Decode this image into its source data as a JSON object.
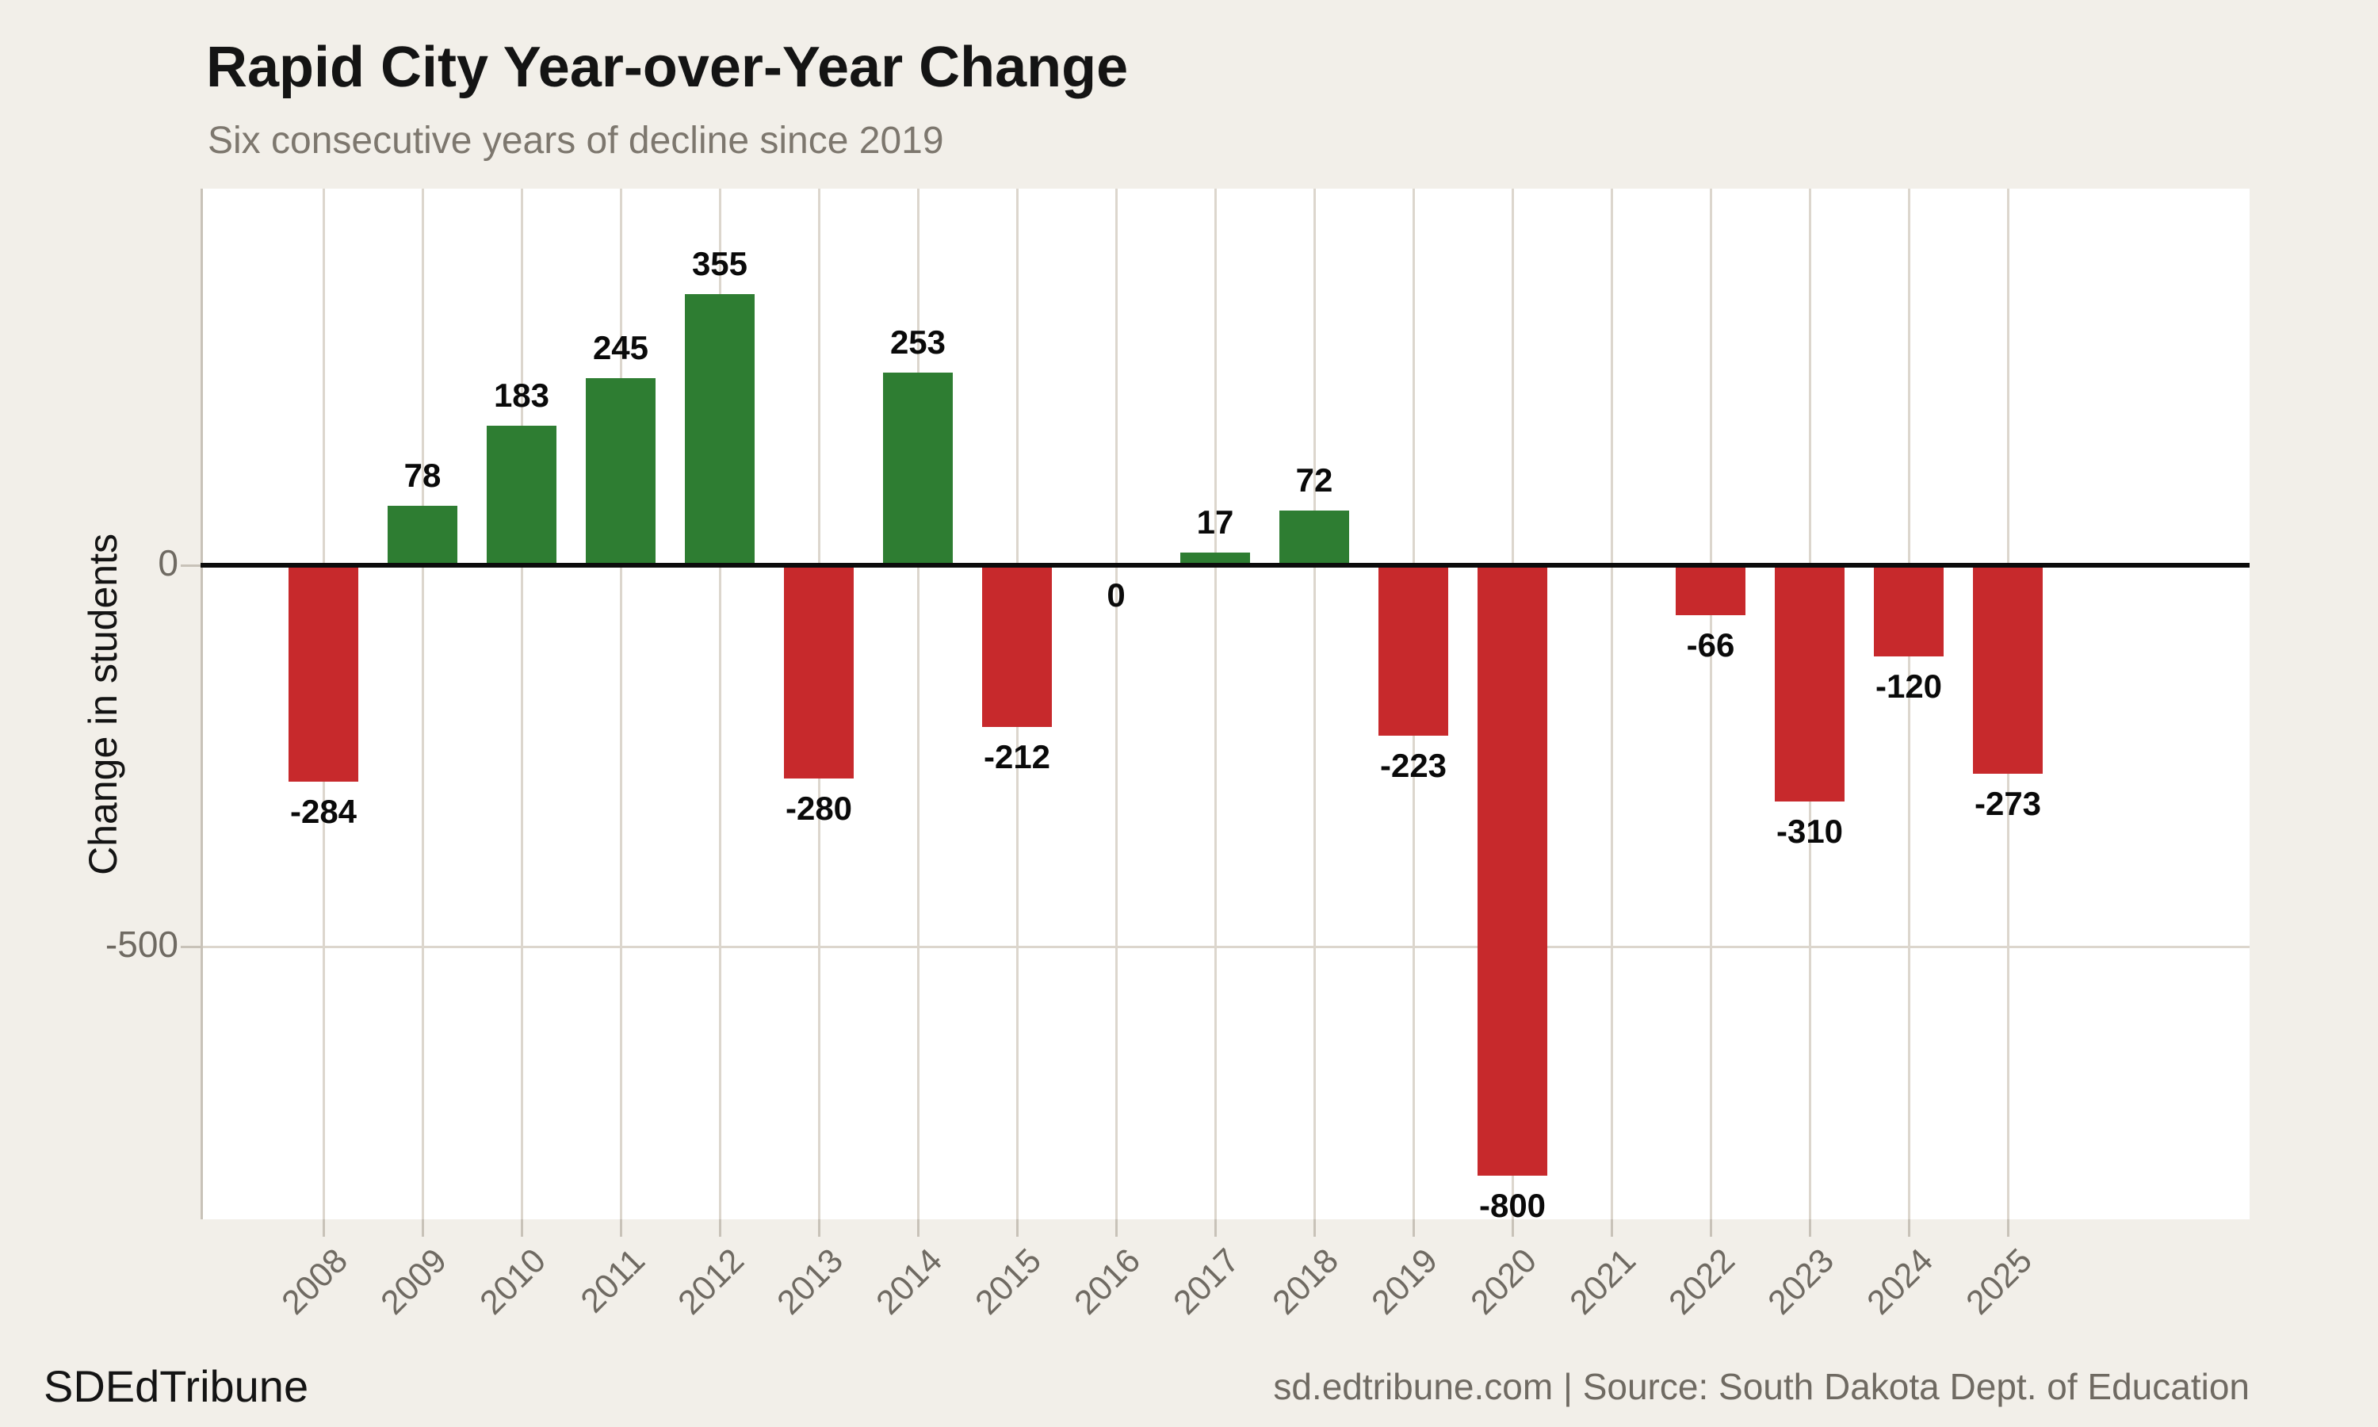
{
  "page": {
    "title": "Rapid City Year-over-Year Change",
    "subtitle": "Six consecutive years of decline since 2019",
    "footer_left": "SDEdTribune",
    "footer_right": "sd.edtribune.com | Source: South Dakota Dept. of Education"
  },
  "chart_data": {
    "type": "bar",
    "title": "Rapid City Year-over-Year Change",
    "subtitle": "Six consecutive years of decline since 2019",
    "xlabel": "",
    "ylabel": "Change in students",
    "categories": [
      "2008",
      "2009",
      "2010",
      "2011",
      "2012",
      "2013",
      "2014",
      "2015",
      "2016",
      "2017",
      "2018",
      "2019",
      "2020",
      "2021",
      "2022",
      "2023",
      "2024",
      "2025"
    ],
    "values": [
      -284,
      78,
      183,
      245,
      355,
      -280,
      253,
      -212,
      0,
      17,
      72,
      -223,
      -800,
      null,
      -66,
      -310,
      -120,
      -273
    ],
    "bar_value_labels": true,
    "yticks": [
      {
        "value": 0,
        "label": "0"
      },
      {
        "value": -500,
        "label": "-500"
      }
    ],
    "ylim": [
      -860,
      495
    ],
    "x_tick_rotation": -45,
    "grid": "vertical per category + horizontal at y ticks",
    "legend": "none",
    "colors": {
      "positive": "#2e7d32",
      "negative": "#c7292c",
      "background": "#f2efe9",
      "plot_background": "#ffffff",
      "gridline": "#dcd6cd",
      "axis_line": "#c8c2b8",
      "zero_line": "#0c0c0c",
      "axis_text": "#6f6a62",
      "subtitle_text": "#7d776e",
      "title_text": "#141414"
    }
  }
}
